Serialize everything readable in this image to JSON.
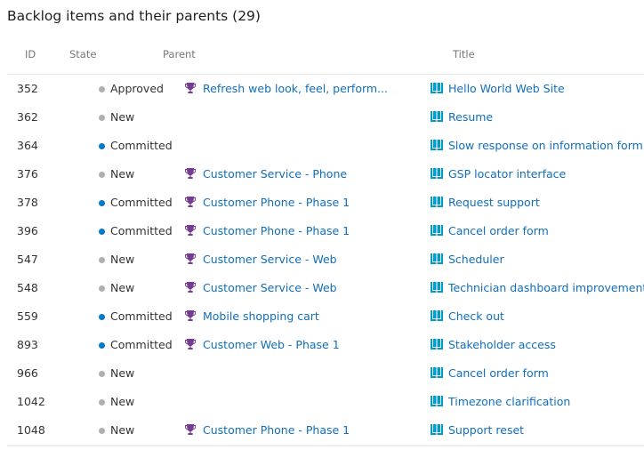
{
  "title": "Backlog items and their parents (29)",
  "columns": {
    "id": "ID",
    "state": "State",
    "parent": "Parent",
    "title": "Title"
  },
  "colors": {
    "approved": "#b0b0b0",
    "new": "#b0b0b0",
    "committed": "#007acc",
    "link": "#106ebe",
    "trophy": "#773b93",
    "book": "#009ccc"
  },
  "icons": {
    "parent": "trophy-icon",
    "title": "book-icon"
  },
  "rows": [
    {
      "id": "352",
      "state": "Approved",
      "parent": "Refresh web look, feel, perform...",
      "title": "Hello World Web Site"
    },
    {
      "id": "362",
      "state": "New",
      "parent": "",
      "title": "Resume"
    },
    {
      "id": "364",
      "state": "Committed",
      "parent": "",
      "title": "Slow response on information form"
    },
    {
      "id": "376",
      "state": "New",
      "parent": "Customer Service - Phone",
      "title": "GSP locator interface"
    },
    {
      "id": "378",
      "state": "Committed",
      "parent": "Customer Phone - Phase 1",
      "title": "Request support"
    },
    {
      "id": "396",
      "state": "Committed",
      "parent": "Customer Phone - Phase 1",
      "title": "Cancel order form"
    },
    {
      "id": "547",
      "state": "New",
      "parent": "Customer Service - Web",
      "title": "Scheduler"
    },
    {
      "id": "548",
      "state": "New",
      "parent": "Customer Service - Web",
      "title": "Technician dashboard improvements"
    },
    {
      "id": "559",
      "state": "Committed",
      "parent": "Mobile shopping cart",
      "title": "Check out"
    },
    {
      "id": "893",
      "state": "Committed",
      "parent": "Customer Web - Phase 1",
      "title": "Stakeholder access"
    },
    {
      "id": "966",
      "state": "New",
      "parent": "",
      "title": "Cancel order form"
    },
    {
      "id": "1042",
      "state": "New",
      "parent": "",
      "title": "Timezone clarification"
    },
    {
      "id": "1048",
      "state": "New",
      "parent": "Customer Phone - Phase 1",
      "title": "Support reset"
    }
  ]
}
